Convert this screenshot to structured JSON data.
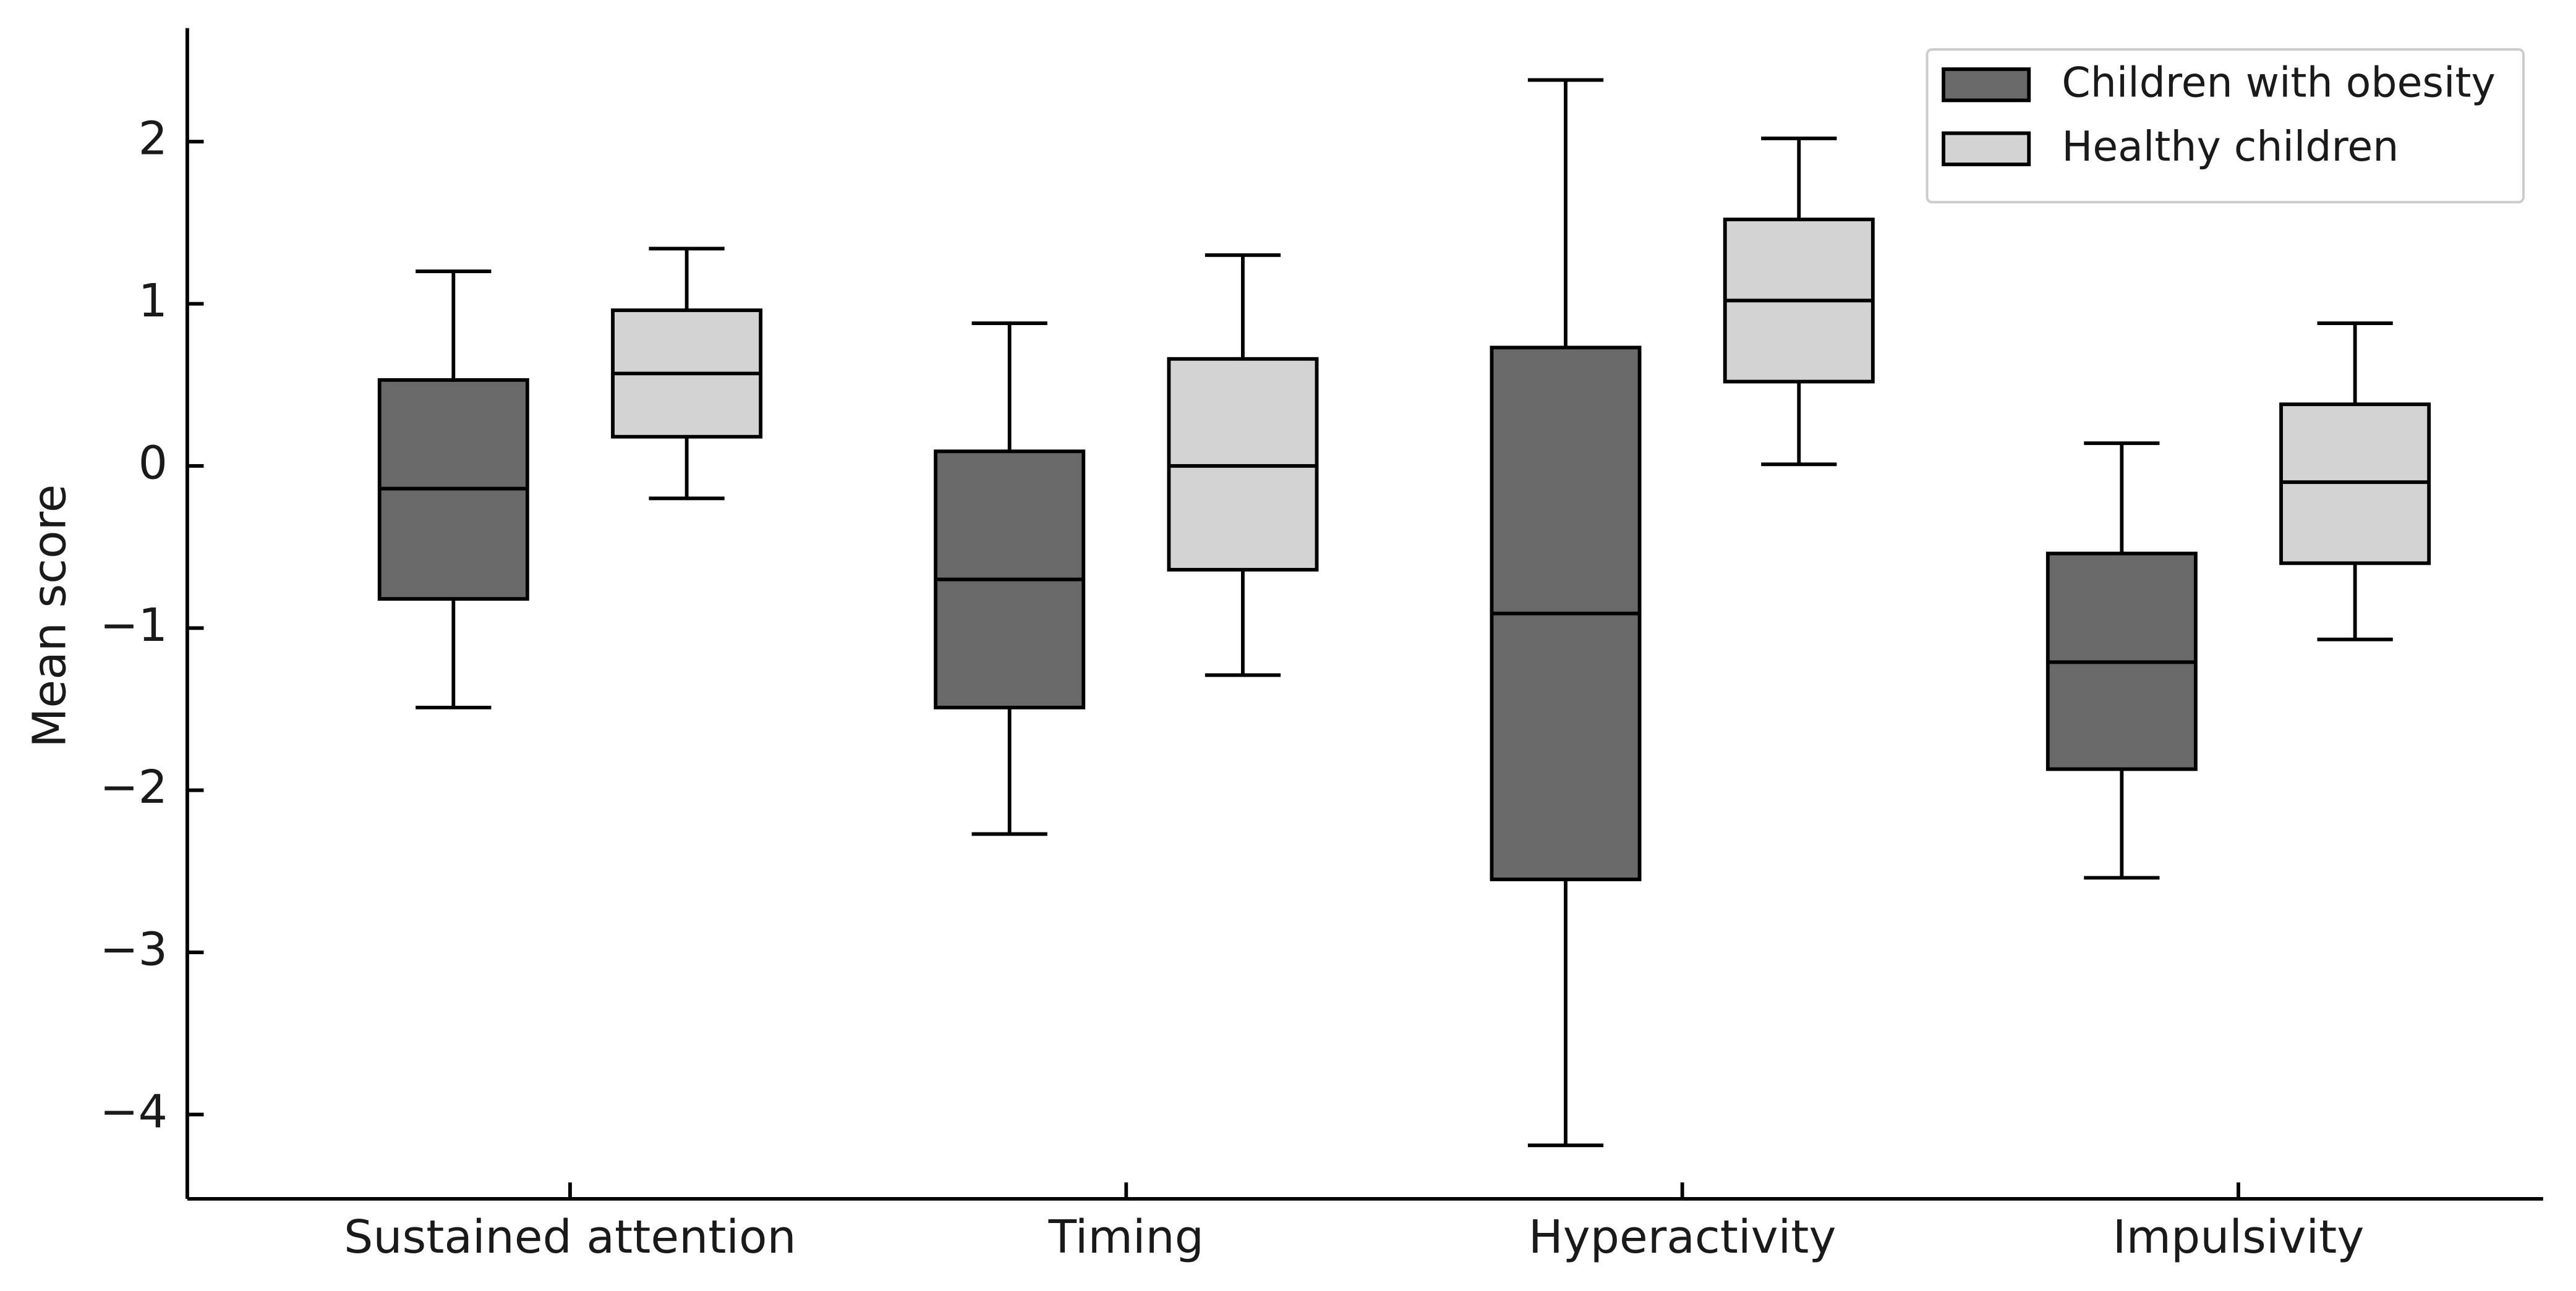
{
  "chart_data": {
    "type": "box",
    "y_label": "Mean score",
    "categories": [
      "Sustained attention",
      "Timing",
      "Hyperactivity",
      "Impulsivity"
    ],
    "series": [
      {
        "name": "Children with obesity",
        "color": "#696969",
        "whislo": [
          -1.49,
          -2.27,
          -4.19,
          -2.54
        ],
        "q1": [
          -0.82,
          -1.49,
          -2.55,
          -1.87
        ],
        "median": [
          -0.14,
          -0.7,
          -0.91,
          -1.21
        ],
        "q3": [
          0.53,
          0.09,
          0.73,
          -0.54
        ],
        "whishi": [
          1.2,
          0.88,
          2.38,
          0.14
        ]
      },
      {
        "name": "Healthy children",
        "color": "#d3d3d3",
        "whislo": [
          -0.2,
          -1.29,
          0.01,
          -1.07
        ],
        "q1": [
          0.18,
          -0.64,
          0.52,
          -0.6
        ],
        "median": [
          0.57,
          0.0,
          1.02,
          -0.1
        ],
        "q3": [
          0.96,
          0.66,
          1.52,
          0.38
        ],
        "whishi": [
          1.34,
          1.3,
          2.02,
          0.88
        ]
      }
    ],
    "ylim": [
      -4.52,
      2.7
    ],
    "yticks": [
      {
        "value": -4,
        "label": "−4"
      },
      {
        "value": -3,
        "label": "−3"
      },
      {
        "value": -2,
        "label": "−2"
      },
      {
        "value": -1,
        "label": "−1"
      },
      0,
      1,
      2
    ],
    "legend": "upper right",
    "grid": false
  }
}
